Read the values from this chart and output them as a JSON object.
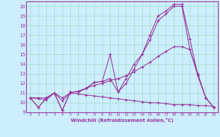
{
  "xlabel": "Windchill (Refroidissement éolien,°C)",
  "bg_color": "#cceeff",
  "grid_color": "#aaddcc",
  "line_color": "#993399",
  "xlim": [
    -0.5,
    23.5
  ],
  "ylim": [
    9,
    20.5
  ],
  "xticks": [
    0,
    1,
    2,
    3,
    4,
    5,
    6,
    7,
    8,
    9,
    10,
    11,
    12,
    13,
    14,
    15,
    16,
    17,
    18,
    19,
    20,
    21,
    22,
    23
  ],
  "yticks": [
    9,
    10,
    11,
    12,
    13,
    14,
    15,
    16,
    17,
    18,
    19,
    20
  ],
  "lines": [
    {
      "x": [
        0,
        1,
        2,
        3,
        4,
        5,
        6,
        7,
        8,
        9,
        10,
        11,
        12,
        13,
        14,
        15,
        16,
        17,
        18,
        19,
        20,
        21,
        22,
        23
      ],
      "y": [
        10.5,
        9.5,
        10.5,
        11.0,
        9.2,
        11.1,
        11.1,
        11.5,
        12.1,
        12.2,
        15.0,
        11.1,
        12.5,
        14.0,
        15.0,
        17.0,
        19.0,
        19.5,
        20.2,
        20.2,
        16.6,
        12.8,
        10.5,
        9.5
      ]
    },
    {
      "x": [
        0,
        1,
        2,
        3,
        4,
        5,
        6,
        7,
        8,
        9,
        10,
        11,
        12,
        13,
        14,
        15,
        16,
        17,
        18,
        19,
        20,
        21,
        22,
        23
      ],
      "y": [
        10.5,
        9.5,
        10.5,
        11.0,
        9.2,
        11.1,
        11.1,
        11.5,
        12.1,
        12.2,
        12.5,
        11.1,
        12.0,
        13.5,
        15.0,
        16.5,
        18.5,
        19.2,
        20.0,
        20.0,
        15.5,
        12.8,
        10.5,
        9.5
      ]
    },
    {
      "x": [
        0,
        1,
        2,
        3,
        4,
        5,
        6,
        7,
        8,
        9,
        10,
        11,
        12,
        13,
        14,
        15,
        16,
        17,
        18,
        19,
        20,
        21,
        22,
        23
      ],
      "y": [
        10.5,
        10.5,
        10.5,
        11.0,
        10.5,
        11.0,
        11.2,
        11.5,
        11.8,
        12.0,
        12.3,
        12.5,
        12.8,
        13.2,
        13.7,
        14.2,
        14.8,
        15.3,
        15.8,
        15.8,
        15.5,
        13.0,
        10.5,
        9.5
      ]
    },
    {
      "x": [
        0,
        1,
        2,
        3,
        4,
        5,
        6,
        7,
        8,
        9,
        10,
        11,
        12,
        13,
        14,
        15,
        16,
        17,
        18,
        19,
        20,
        21,
        22,
        23
      ],
      "y": [
        10.5,
        10.4,
        10.3,
        11.0,
        10.2,
        11.0,
        10.9,
        10.8,
        10.7,
        10.6,
        10.5,
        10.4,
        10.3,
        10.2,
        10.1,
        10.0,
        10.0,
        9.9,
        9.8,
        9.8,
        9.8,
        9.7,
        9.7,
        9.6
      ]
    }
  ]
}
